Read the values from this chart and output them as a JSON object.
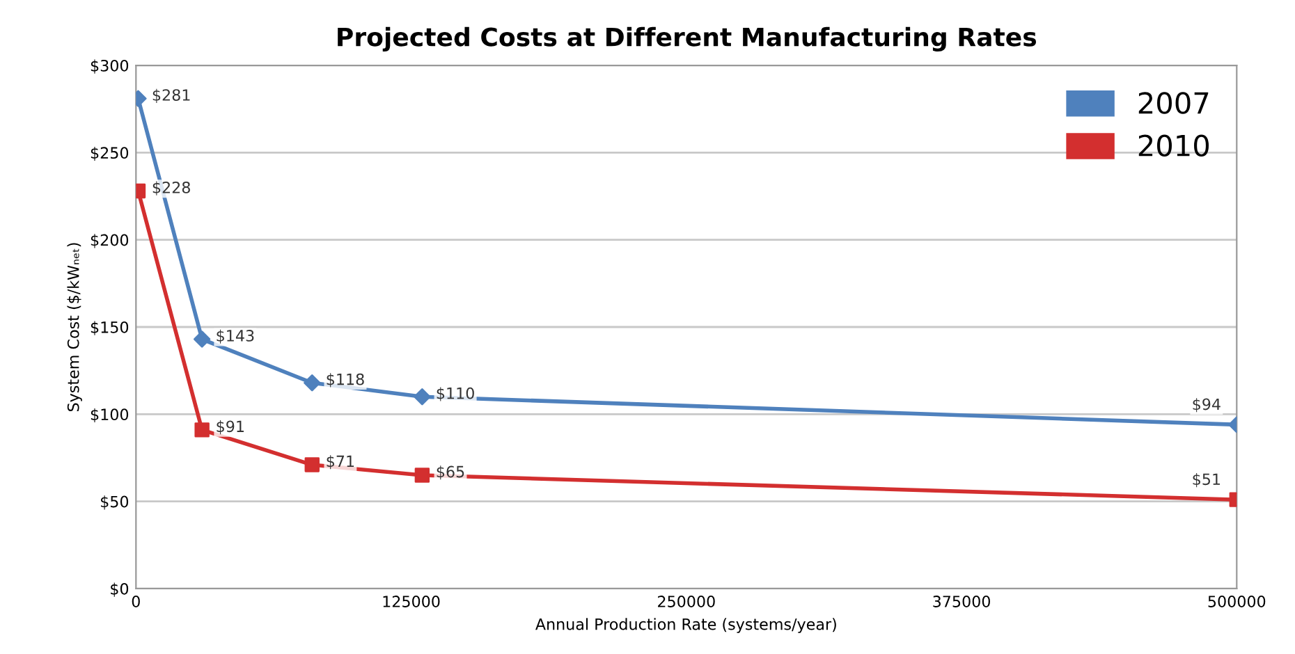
{
  "chart_data": {
    "type": "line",
    "title": "Projected Costs at Different Manufacturing Rates",
    "xlabel": "Annual Production Rate (systems/year)",
    "ylabel": "System Cost ($/kWₙₑₜ)",
    "x": [
      1000,
      30000,
      80000,
      130000,
      500000
    ],
    "series": [
      {
        "name": "2007",
        "color": "#4f81bd",
        "marker": "diamond",
        "values": [
          281,
          143,
          118,
          110,
          94
        ],
        "value_labels": [
          "$281",
          "$143",
          "$118",
          "$110",
          "$94"
        ]
      },
      {
        "name": "2010",
        "color": "#d32f2f",
        "marker": "square",
        "values": [
          228,
          91,
          71,
          65,
          51
        ],
        "value_labels": [
          "$228",
          "$91",
          "$71",
          "$65",
          "$51"
        ]
      }
    ],
    "xlim": [
      0,
      500000
    ],
    "xticks": [
      0,
      125000,
      250000,
      375000,
      500000
    ],
    "ylim": [
      0,
      300
    ],
    "yticks": [
      {
        "value": 0,
        "label": "$0"
      },
      {
        "value": 50,
        "label": "$50"
      },
      {
        "value": 100,
        "label": "$100"
      },
      {
        "value": 150,
        "label": "$150"
      },
      {
        "value": 200,
        "label": "$200"
      },
      {
        "value": 250,
        "label": "$250"
      },
      {
        "value": 300,
        "label": "$300"
      }
    ],
    "grid": "y",
    "legend": "top right"
  }
}
